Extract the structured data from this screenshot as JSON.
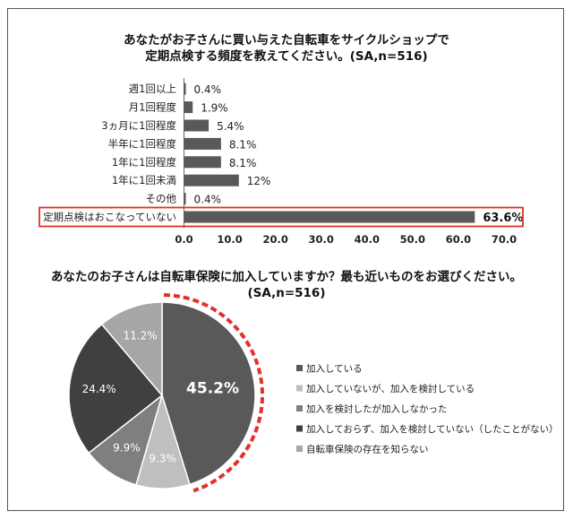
{
  "chart_data": [
    {
      "type": "bar",
      "orientation": "horizontal",
      "title_lines": [
        "あなたがお子さんに買い与えた自転車をサイクルショップで",
        "定期点検する頻度を教えてください。(SA,n=516)"
      ],
      "categories": [
        "週1回以上",
        "月1回程度",
        "3ヵ月に1回程度",
        "半年に1回程度",
        "1年に1回程度",
        "1年に1回未満",
        "その他",
        "定期点検はおこなっていない"
      ],
      "values": [
        0.4,
        1.9,
        5.4,
        8.1,
        8.1,
        12,
        0.4,
        63.6
      ],
      "value_labels": [
        "0.4%",
        "1.9%",
        "5.4%",
        "8.1%",
        "8.1%",
        "12%",
        "0.4%",
        "63.6%"
      ],
      "x_ticks": [
        "0.0",
        "10.0",
        "20.0",
        "30.0",
        "40.0",
        "50.0",
        "60.0",
        "70.0"
      ],
      "xlim": [
        0,
        70
      ],
      "highlighted_category": "定期点検はおこなっていない",
      "bar_color": "#595959",
      "highlight_color": "#e0312b"
    },
    {
      "type": "pie",
      "title_lines": [
        "あなたのお子さんは自転車保険に加入していますか？最も近いものをお選びください。",
        "(SA,n=516)"
      ],
      "categories": [
        "加入している",
        "加入していないが、加入を検討している",
        "加入を検討したが加入しなかった",
        "加入しておらず、加入を検討していない（したことがない）",
        "自転車保険の存在を知らない"
      ],
      "values": [
        45.2,
        9.3,
        9.9,
        24.4,
        11.2
      ],
      "value_labels": [
        "45.2%",
        "9.3%",
        "9.9%",
        "24.4%",
        "11.2%"
      ],
      "colors": [
        "#595959",
        "#bfbfbf",
        "#7f7f7f",
        "#404040",
        "#a6a6a6"
      ],
      "legend_position": "right",
      "highlighted_category": "加入している",
      "highlight_color": "#e0312b"
    }
  ]
}
